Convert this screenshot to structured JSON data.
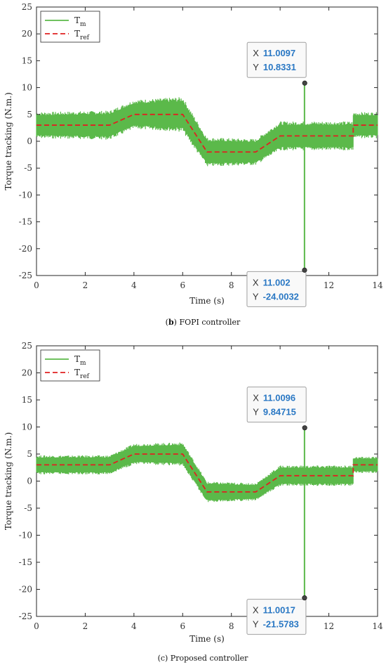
{
  "chart_data": [
    {
      "type": "line",
      "panel": "b",
      "caption_label": "b",
      "caption_text": " FOPI controller",
      "xlabel": "Time (s)",
      "ylabel": "Torque tracking (N.m.)",
      "xlim": [
        0,
        14
      ],
      "ylim": [
        -25,
        25
      ],
      "xticks": [
        0,
        2,
        4,
        6,
        8,
        10,
        12,
        14
      ],
      "yticks": [
        -25,
        -20,
        -15,
        -10,
        -5,
        0,
        5,
        10,
        15,
        20,
        25
      ],
      "legend": [
        {
          "name": "T",
          "sub": "m",
          "style": "solid",
          "color": "#5bb94a"
        },
        {
          "name": "T",
          "sub": "ref",
          "style": "dashed",
          "color": "#e02020"
        }
      ],
      "legend_position": "top-left",
      "series": [
        {
          "name": "Tref",
          "x": [
            0,
            3,
            4,
            6,
            7,
            9,
            10,
            13,
            13,
            14
          ],
          "y": [
            3,
            3,
            5,
            5,
            -2,
            -2,
            1,
            1,
            3,
            3
          ]
        },
        {
          "name": "Tm",
          "band_x": [
            0,
            3,
            4,
            6,
            7,
            9,
            10,
            13,
            13,
            14
          ],
          "band_y": [
            3,
            3,
            5,
            5,
            -2,
            -2,
            1,
            1,
            3,
            3
          ],
          "band_halfwidth": [
            1.8,
            2.0,
            2.0,
            2.4,
            2.0,
            1.8,
            2.0,
            2.0,
            1.8,
            1.8
          ],
          "spike": {
            "x": 11.0,
            "ymax": 10.8331,
            "ymin": -24.0032
          }
        }
      ],
      "datatips": [
        {
          "x_label": "X",
          "x_value": "11.0097",
          "y_label": "Y",
          "y_value": "10.8331",
          "x": 11.0097,
          "y": 10.8331
        },
        {
          "x_label": "X",
          "x_value": "11.002",
          "y_label": "Y",
          "y_value": "-24.0032",
          "x": 11.002,
          "y": -24.0032
        }
      ],
      "colors": {
        "measured": "#5bb94a",
        "reference": "#e02020",
        "datatip_value": "#2a78c4"
      }
    },
    {
      "type": "line",
      "panel": "c",
      "caption_label": "",
      "caption_text": "(c) Proposed controller",
      "xlabel": "Time (s)",
      "ylabel": "Torque tracking (N.m.)",
      "xlim": [
        0,
        14
      ],
      "ylim": [
        -25,
        25
      ],
      "xticks": [
        0,
        2,
        4,
        6,
        8,
        10,
        12,
        14
      ],
      "yticks": [
        -25,
        -20,
        -15,
        -10,
        -5,
        0,
        5,
        10,
        15,
        20,
        25
      ],
      "legend": [
        {
          "name": "T",
          "sub": "m",
          "style": "solid",
          "color": "#5bb94a"
        },
        {
          "name": "T",
          "sub": "ref",
          "style": "dashed",
          "color": "#e02020"
        }
      ],
      "legend_position": "top-left",
      "series": [
        {
          "name": "Tref",
          "x": [
            0,
            3,
            4,
            6,
            7,
            9,
            10,
            13,
            13,
            14
          ],
          "y": [
            3,
            3,
            5,
            5,
            -2,
            -2,
            1,
            1,
            3,
            3
          ]
        },
        {
          "name": "Tm",
          "band_x": [
            0,
            3,
            4,
            6,
            7,
            9,
            10,
            13,
            13,
            14
          ],
          "band_y": [
            3,
            3,
            5,
            5,
            -2,
            -2,
            1,
            1,
            3,
            3
          ],
          "band_halfwidth": [
            1.3,
            1.3,
            1.4,
            1.6,
            1.4,
            1.2,
            1.4,
            1.4,
            1.1,
            1.1
          ],
          "spike": {
            "x": 11.0,
            "ymax": 9.84715,
            "ymin": -21.5783
          }
        }
      ],
      "datatips": [
        {
          "x_label": "X",
          "x_value": "11.0096",
          "y_label": "Y",
          "y_value": "9.84715",
          "x": 11.0096,
          "y": 9.84715
        },
        {
          "x_label": "X",
          "x_value": "11.0017",
          "y_label": "Y",
          "y_value": "-21.5783",
          "x": 11.0017,
          "y": -21.5783
        }
      ],
      "colors": {
        "measured": "#5bb94a",
        "reference": "#e02020",
        "datatip_value": "#2a78c4"
      }
    }
  ]
}
